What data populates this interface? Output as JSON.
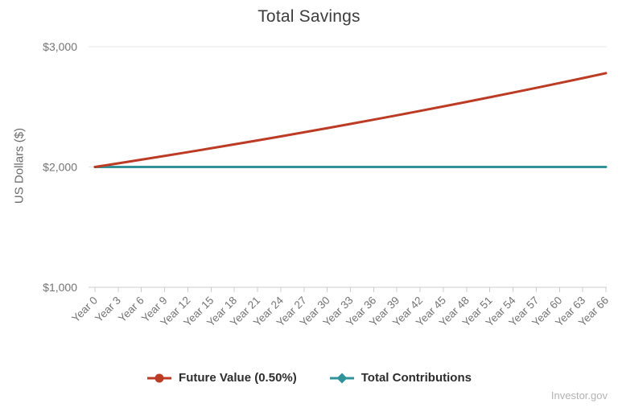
{
  "title": "Total Savings",
  "footer": "Investor.gov",
  "colors": {
    "future_value": "#bb3b25",
    "contributions": "#31939a",
    "grid": "#e7e7e7",
    "axis": "#cccccc",
    "tick_label": "#737373",
    "title_text": "#3d3d3d",
    "legend_text": "#2d2d2d",
    "footer_text": "#b3b3b3"
  },
  "chart_data": {
    "type": "line",
    "title": "Total Savings",
    "xlabel": "",
    "ylabel": "US Dollars ($)",
    "ylim": [
      1000,
      3000
    ],
    "yticks": [
      {
        "value": 1000,
        "label": "$1,000"
      },
      {
        "value": 2000,
        "label": "$2,000"
      },
      {
        "value": 3000,
        "label": "$3,000"
      }
    ],
    "grid": "horizontal",
    "legend_position": "bottom",
    "categories": [
      "Year 0",
      "Year 3",
      "Year 6",
      "Year 9",
      "Year 12",
      "Year 15",
      "Year 18",
      "Year 21",
      "Year 24",
      "Year 27",
      "Year 30",
      "Year 33",
      "Year 36",
      "Year 39",
      "Year 42",
      "Year 45",
      "Year 48",
      "Year 51",
      "Year 54",
      "Year 57",
      "Year 60",
      "Year 63",
      "Year 66"
    ],
    "series": [
      {
        "name": "Future Value (0.50%)",
        "slug": "future-value",
        "color_key": "future_value",
        "marker": "circle",
        "values": [
          2000,
          2030.15,
          2060.76,
          2091.82,
          2123.36,
          2155.37,
          2187.86,
          2220.84,
          2254.32,
          2288.3,
          2322.8,
          2357.82,
          2393.36,
          2429.44,
          2466.06,
          2503.24,
          2540.98,
          2579.28,
          2618.17,
          2657.64,
          2697.7,
          2738.37,
          2779.65
        ]
      },
      {
        "name": "Total Contributions",
        "slug": "total-contributions",
        "color_key": "contributions",
        "marker": "diamond",
        "values": [
          2000,
          2000,
          2000,
          2000,
          2000,
          2000,
          2000,
          2000,
          2000,
          2000,
          2000,
          2000,
          2000,
          2000,
          2000,
          2000,
          2000,
          2000,
          2000,
          2000,
          2000,
          2000,
          2000
        ]
      }
    ]
  }
}
